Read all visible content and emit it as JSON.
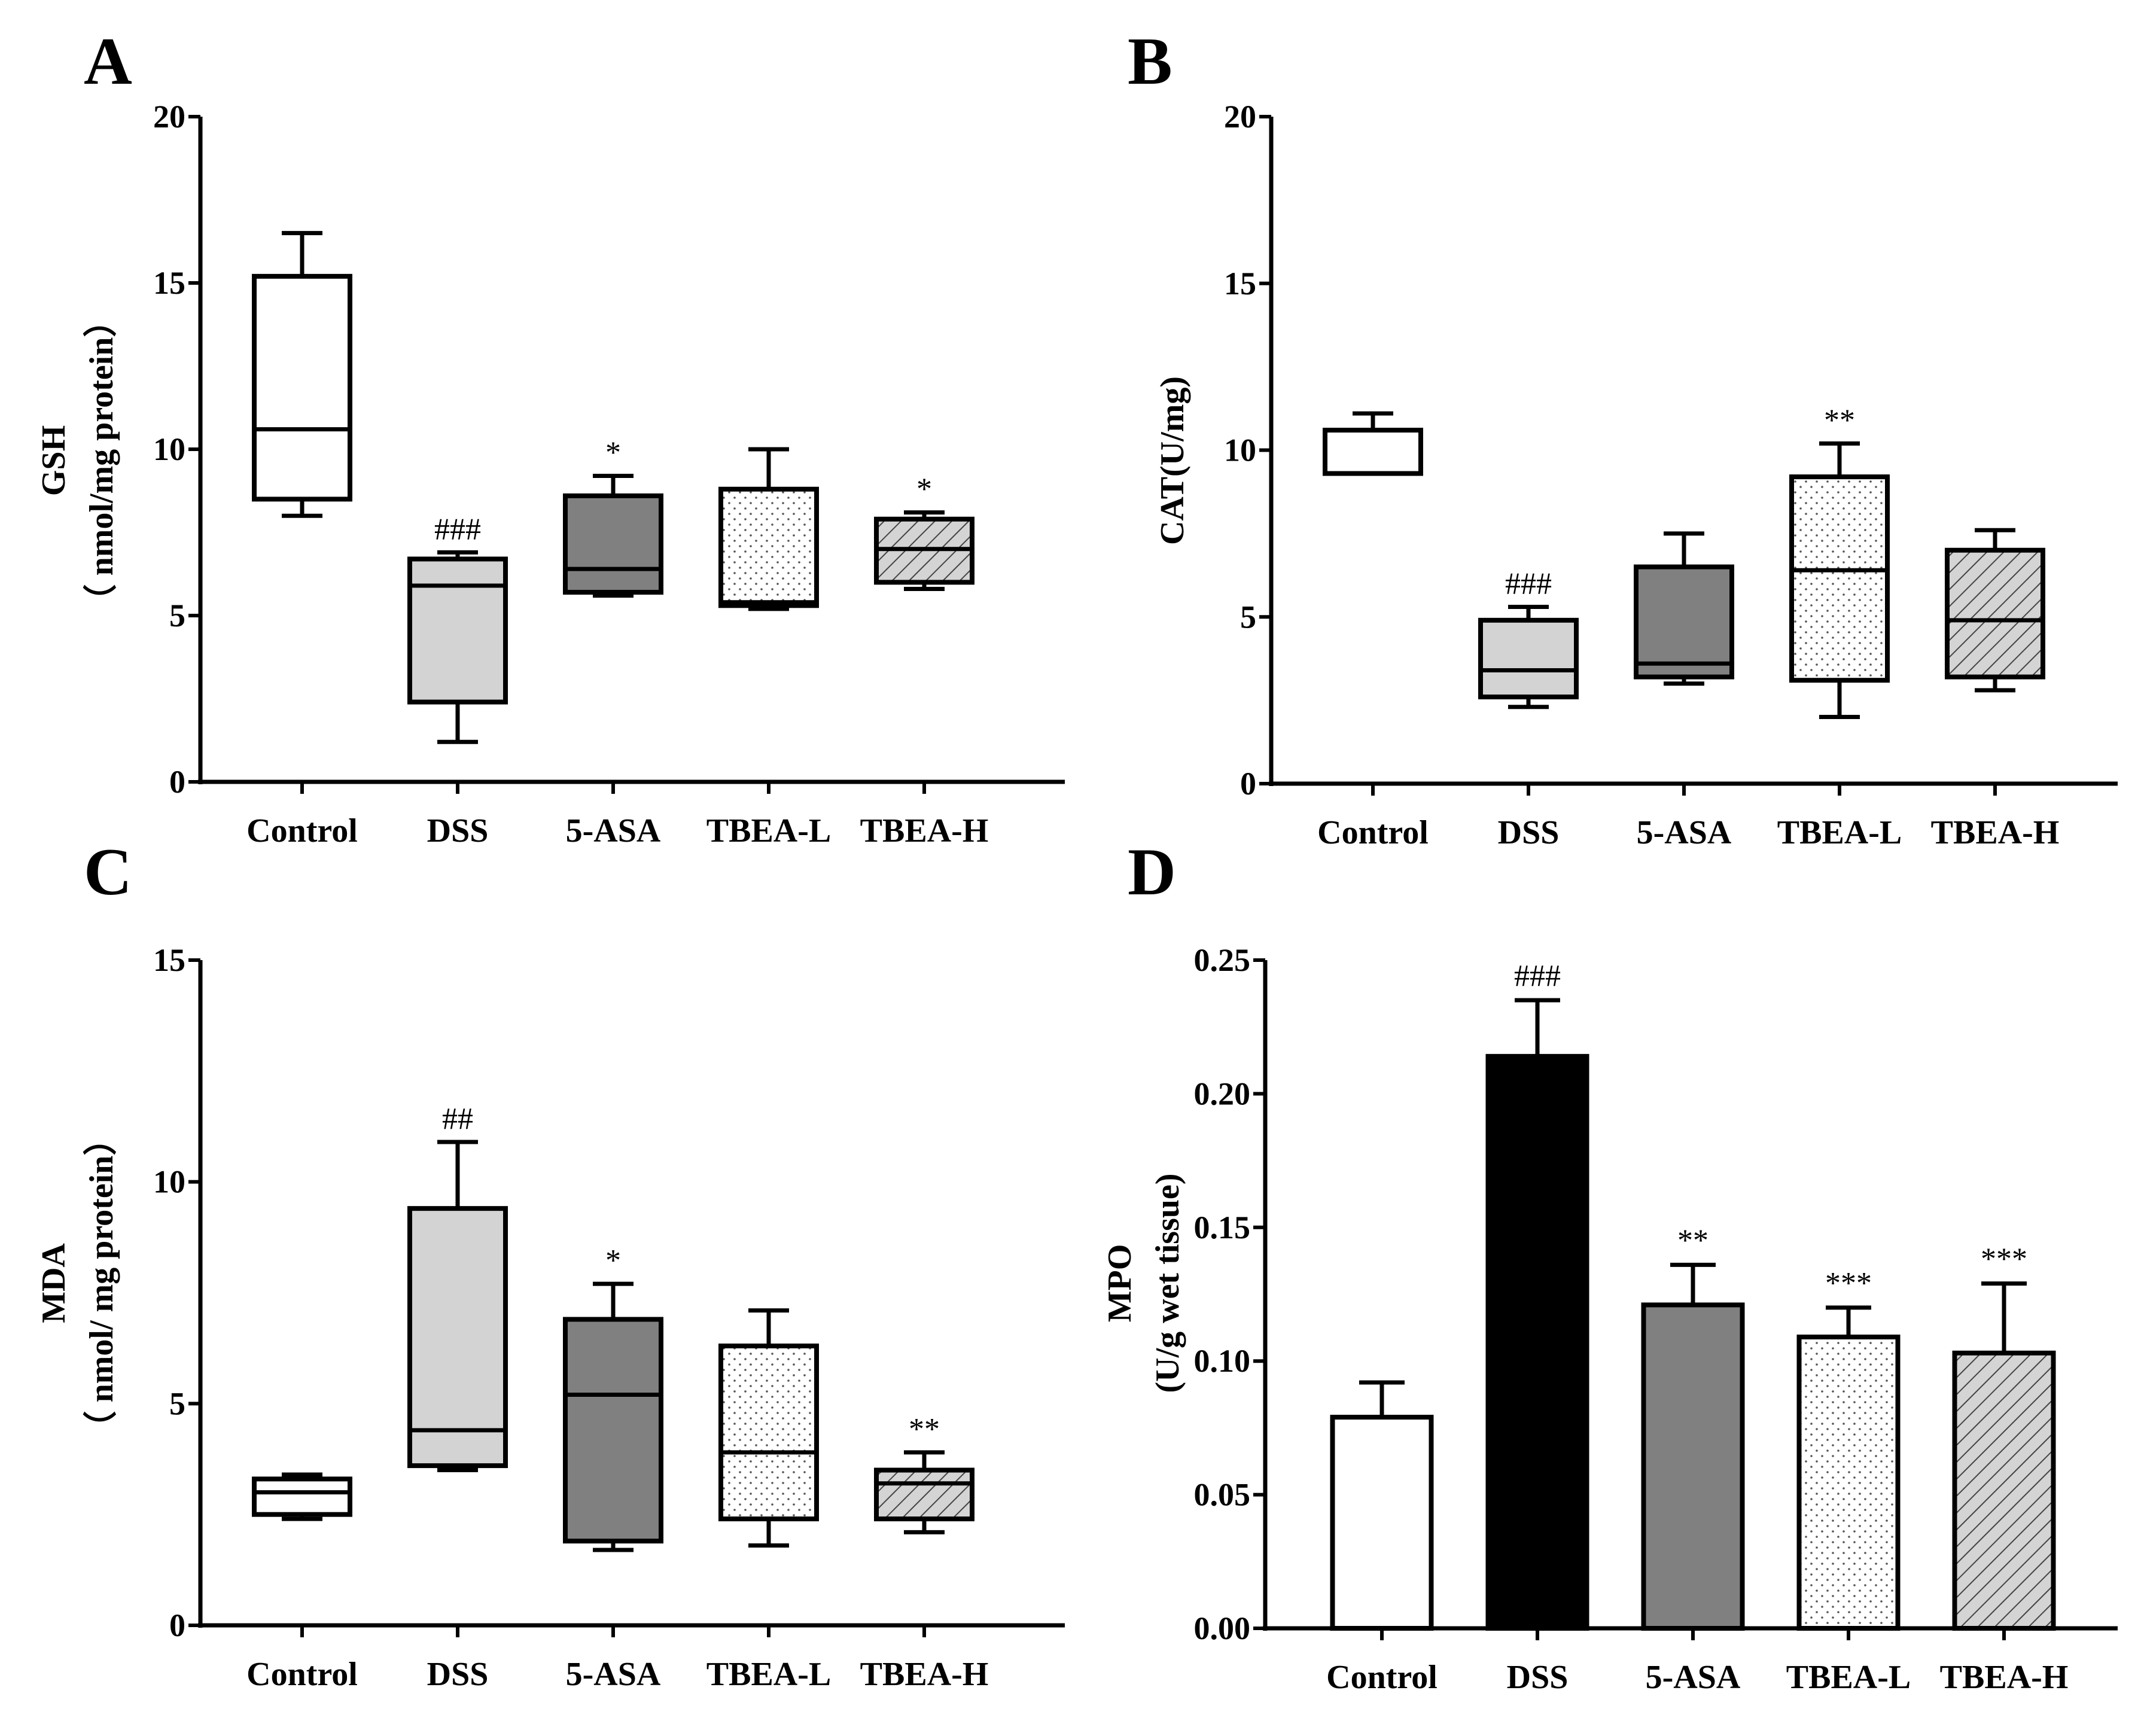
{
  "chart_data": [
    {
      "panel": "A",
      "type": "box",
      "ylabel_line1": "GSH",
      "ylabel_line2": "（ nmol/mg protein）",
      "ylim": [
        0,
        20
      ],
      "yticks": [
        0,
        5,
        10,
        15,
        20
      ],
      "tick_labels": [
        "0",
        "5",
        "10",
        "15",
        "20"
      ],
      "categories": [
        "Control",
        "DSS",
        "5-ASA",
        "TBEA-L",
        "TBEA-H"
      ],
      "boxes": [
        {
          "min": 8.0,
          "q1": 8.5,
          "median": 10.6,
          "q3": 15.2,
          "max": 16.5,
          "fill": "white",
          "sig": ""
        },
        {
          "min": 1.2,
          "q1": 2.4,
          "median": 5.9,
          "q3": 6.7,
          "max": 6.9,
          "fill": "lightgray",
          "sig": "###"
        },
        {
          "min": 5.6,
          "q1": 5.7,
          "median": 6.4,
          "q3": 8.6,
          "max": 9.2,
          "fill": "darkgray",
          "sig": "*"
        },
        {
          "min": 5.2,
          "q1": 5.3,
          "median": 5.4,
          "q3": 8.8,
          "max": 10.0,
          "fill": "dots",
          "sig": ""
        },
        {
          "min": 5.8,
          "q1": 6.0,
          "median": 7.0,
          "q3": 7.9,
          "max": 8.1,
          "fill": "hatch",
          "sig": "*"
        }
      ]
    },
    {
      "panel": "B",
      "type": "box",
      "ylabel_line1": "CAT(U/mg)",
      "ylabel_line2": "",
      "ylim": [
        0,
        20
      ],
      "yticks": [
        0,
        5,
        10,
        15,
        20
      ],
      "tick_labels": [
        "0",
        "5",
        "10",
        "15",
        "20"
      ],
      "categories": [
        "Control",
        "DSS",
        "5-ASA",
        "TBEA-L",
        "TBEA-H"
      ],
      "boxes": [
        {
          "min": 9.3,
          "q1": 9.3,
          "median": 9.3,
          "q3": 10.6,
          "max": 11.1,
          "fill": "white",
          "sig": ""
        },
        {
          "min": 2.3,
          "q1": 2.6,
          "median": 3.4,
          "q3": 4.9,
          "max": 5.3,
          "fill": "lightgray",
          "sig": "###"
        },
        {
          "min": 3.0,
          "q1": 3.2,
          "median": 3.6,
          "q3": 6.5,
          "max": 7.5,
          "fill": "darkgray",
          "sig": ""
        },
        {
          "min": 2.0,
          "q1": 3.1,
          "median": 6.4,
          "q3": 9.2,
          "max": 10.2,
          "fill": "dots",
          "sig": "**"
        },
        {
          "min": 2.8,
          "q1": 3.2,
          "median": 4.9,
          "q3": 7.0,
          "max": 7.6,
          "fill": "hatch",
          "sig": ""
        }
      ]
    },
    {
      "panel": "C",
      "type": "box",
      "ylabel_line1": "MDA",
      "ylabel_line2": "（ nmol/ mg protein）",
      "ylim": [
        0,
        15
      ],
      "yticks": [
        0,
        5,
        10,
        15
      ],
      "tick_labels": [
        "0",
        "5",
        "10",
        "15"
      ],
      "categories": [
        "Control",
        "DSS",
        "5-ASA",
        "TBEA-L",
        "TBEA-H"
      ],
      "boxes": [
        {
          "min": 2.4,
          "q1": 2.5,
          "median": 3.0,
          "q3": 3.3,
          "max": 3.4,
          "fill": "white",
          "sig": ""
        },
        {
          "min": 3.5,
          "q1": 3.6,
          "median": 4.4,
          "q3": 9.4,
          "max": 10.9,
          "fill": "lightgray",
          "sig": "##"
        },
        {
          "min": 1.7,
          "q1": 1.9,
          "median": 5.2,
          "q3": 6.9,
          "max": 7.7,
          "fill": "darkgray",
          "sig": "*"
        },
        {
          "min": 1.8,
          "q1": 2.4,
          "median": 3.9,
          "q3": 6.3,
          "max": 7.1,
          "fill": "dots",
          "sig": ""
        },
        {
          "min": 2.1,
          "q1": 2.4,
          "median": 3.2,
          "q3": 3.5,
          "max": 3.9,
          "fill": "hatch",
          "sig": "**"
        }
      ]
    },
    {
      "panel": "D",
      "type": "bar",
      "ylabel_line1": "MPO",
      "ylabel_line2": "(U/g wet tissue)",
      "ylim": [
        0,
        0.25
      ],
      "yticks": [
        0,
        0.05,
        0.1,
        0.15,
        0.2,
        0.25
      ],
      "tick_labels": [
        "0.00",
        "0.05",
        "0.10",
        "0.15",
        "0.20",
        "0.25"
      ],
      "categories": [
        "Control",
        "DSS",
        "5-ASA",
        "TBEA-L",
        "TBEA-H"
      ],
      "bars": [
        {
          "value": 0.079,
          "error": 0.013,
          "fill": "white",
          "sig": ""
        },
        {
          "value": 0.214,
          "error": 0.021,
          "fill": "black",
          "sig": "###"
        },
        {
          "value": 0.121,
          "error": 0.015,
          "fill": "darkgray",
          "sig": "**"
        },
        {
          "value": 0.109,
          "error": 0.011,
          "fill": "dots",
          "sig": "***"
        },
        {
          "value": 0.103,
          "error": 0.026,
          "fill": "hatch",
          "sig": "***"
        }
      ]
    }
  ]
}
